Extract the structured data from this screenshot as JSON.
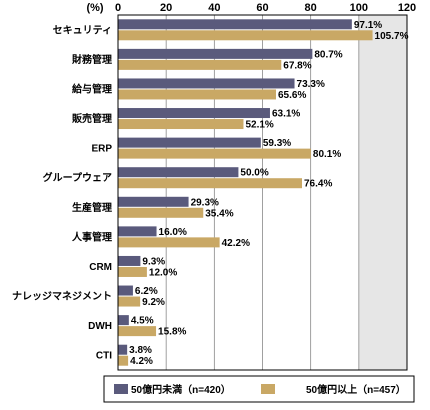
{
  "chart_data": {
    "type": "bar",
    "orientation": "horizontal",
    "unit_label": "(%)",
    "xlim": [
      0,
      120
    ],
    "xticks": [
      "0",
      "20",
      "40",
      "60",
      "80",
      "100",
      "120"
    ],
    "grid": true,
    "categories": [
      "セキュリティ",
      "財務管理",
      "給与管理",
      "販売管理",
      "ERP",
      "グループウェア",
      "生産管理",
      "人事管理",
      "CRM",
      "ナレッジマネジメント",
      "DWH",
      "CTI"
    ],
    "series": [
      {
        "name": "50億円未満（n=420）",
        "color": "#5a5a7c",
        "values": [
          97.1,
          80.7,
          73.3,
          63.1,
          59.3,
          50.0,
          29.3,
          16.0,
          9.3,
          6.2,
          4.5,
          3.8
        ],
        "labels": [
          "97.1%",
          "80.7%",
          "73.3%",
          "63.1%",
          "59.3%",
          "50.0%",
          "29.3%",
          "16.0%",
          "9.3%",
          "6.2%",
          "4.5%",
          "3.8%"
        ]
      },
      {
        "name": "50億円以上（n=457）",
        "color": "#c9a865",
        "values": [
          105.7,
          67.8,
          65.6,
          52.1,
          80.1,
          76.4,
          35.4,
          42.2,
          12.0,
          9.2,
          15.8,
          4.2
        ],
        "labels": [
          "105.7%",
          "67.8%",
          "65.6%",
          "52.1%",
          "80.1%",
          "76.4%",
          "35.4%",
          "42.2%",
          "12.0%",
          "9.2%",
          "15.8%",
          "4.2%"
        ]
      }
    ],
    "legend_position": "bottom"
  }
}
